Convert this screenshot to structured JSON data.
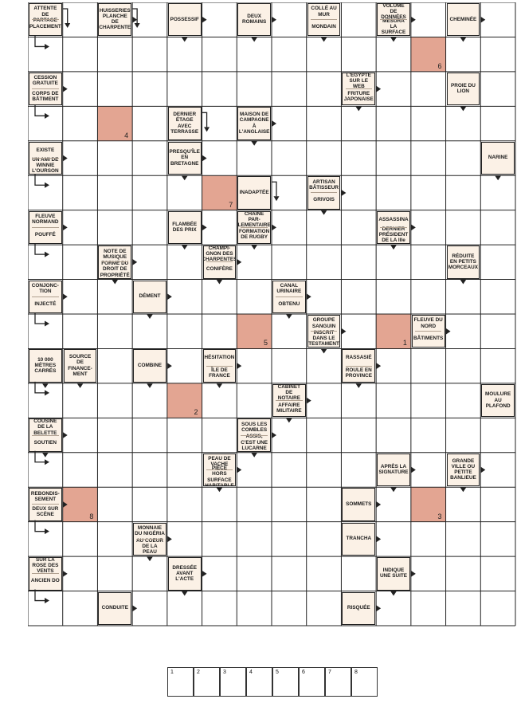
{
  "grid": {
    "cols": 14,
    "rows": 18
  },
  "colors": {
    "clue_bg": "#fbf1e6",
    "shade": "#e3a592",
    "line": "#222222"
  },
  "clues": [
    {
      "id": "c0-0",
      "r": 0,
      "c": 0,
      "parts": [
        "BIEN EN ATTENTE DE PARTAGE",
        "PLACEMENT"
      ]
    },
    {
      "id": "c0-2",
      "r": 0,
      "c": 2,
      "parts": [
        "HUISSERIES PLANCHE DE CHARPENTE"
      ]
    },
    {
      "id": "c0-4",
      "r": 0,
      "c": 4,
      "parts": [
        "POSSESSIF"
      ]
    },
    {
      "id": "c0-6",
      "r": 0,
      "c": 6,
      "parts": [
        "DEUX ROMAINS"
      ]
    },
    {
      "id": "c0-8",
      "r": 0,
      "c": 8,
      "parts": [
        "COLLÉ AU MUR",
        "MONDAIN"
      ]
    },
    {
      "id": "c0-10",
      "r": 0,
      "c": 10,
      "parts": [
        "VOLUME DE DONNÉES",
        "MESURA LA SURFACE"
      ]
    },
    {
      "id": "c0-12",
      "r": 0,
      "c": 12,
      "parts": [
        "CHEMINÉE"
      ]
    },
    {
      "id": "c2-0",
      "r": 2,
      "c": 0,
      "parts": [
        "CESSION GRATUITE",
        "CORPS DE BÂTIMENT"
      ]
    },
    {
      "id": "c2-9",
      "r": 2,
      "c": 9,
      "parts": [
        "L'ÉGYPTE SUR LE WEB",
        "FRITURE JAPONAISE"
      ]
    },
    {
      "id": "c2-12",
      "r": 2,
      "c": 12,
      "parts": [
        "PROIE DU LION"
      ]
    },
    {
      "id": "c3-4",
      "r": 3,
      "c": 4,
      "parts": [
        "DERNIER ÉTAGE AVEC TERRASSE"
      ]
    },
    {
      "id": "c3-6",
      "r": 3,
      "c": 6,
      "parts": [
        "MAISON DE CAMPAGNE À L'ANGLAISE"
      ]
    },
    {
      "id": "c4-0",
      "r": 4,
      "c": 0,
      "parts": [
        "EXISTE",
        "UN AMI DE WINNIE L'OURSON"
      ]
    },
    {
      "id": "c4-4",
      "r": 4,
      "c": 4,
      "parts": [
        "PRESQU'ÎLE EN BRETAGNE"
      ]
    },
    {
      "id": "c4-13",
      "r": 4,
      "c": 13,
      "parts": [
        "NARINE"
      ]
    },
    {
      "id": "c5-6",
      "r": 5,
      "c": 6,
      "parts": [
        "INADAPTÉE"
      ]
    },
    {
      "id": "c5-8",
      "r": 5,
      "c": 8,
      "parts": [
        "ARTISAN BÂTISSEUR",
        "GRIVOIS"
      ]
    },
    {
      "id": "c6-0",
      "r": 6,
      "c": 0,
      "parts": [
        "FLEUVE NORMAND",
        "POUFFÉ"
      ]
    },
    {
      "id": "c6-4",
      "r": 6,
      "c": 4,
      "parts": [
        "FLAMBÉE DES PRIX"
      ]
    },
    {
      "id": "c6-6",
      "r": 6,
      "c": 6,
      "parts": [
        "CHAÎNE PAR-LEMENTAIRE",
        "FORMATION DE RUGBY"
      ]
    },
    {
      "id": "c6-10",
      "r": 6,
      "c": 10,
      "parts": [
        "ASSASSINA",
        "DERNIER PRÉSIDENT DE LA IIIe"
      ]
    },
    {
      "id": "c7-2",
      "r": 7,
      "c": 2,
      "parts": [
        "NOTE DE MUSIQUE",
        "FORME DU DROIT DE PROPRIÉTÉ"
      ]
    },
    {
      "id": "c7-5",
      "r": 7,
      "c": 5,
      "parts": [
        "CHAMPI-GNON DES CHARPENTES",
        "CONIFÈRE"
      ]
    },
    {
      "id": "c7-12",
      "r": 7,
      "c": 12,
      "parts": [
        "RÉDUITE EN PETITS MORCEAUX"
      ]
    },
    {
      "id": "c8-0",
      "r": 8,
      "c": 0,
      "parts": [
        "CONJONC-TION",
        "INJECTÉ"
      ]
    },
    {
      "id": "c8-3",
      "r": 8,
      "c": 3,
      "parts": [
        "DÉMENT"
      ]
    },
    {
      "id": "c8-7",
      "r": 8,
      "c": 7,
      "parts": [
        "CANAL URINAIRE",
        "OBTENU"
      ]
    },
    {
      "id": "c9-8",
      "r": 9,
      "c": 8,
      "parts": [
        "GROUPE SANGUIN",
        "INSCRIT DANS LE TESTAMENT"
      ]
    },
    {
      "id": "c9-11",
      "r": 9,
      "c": 11,
      "parts": [
        "FLEUVE DU NORD",
        "BÂTIMENTS"
      ]
    },
    {
      "id": "c10-0",
      "r": 10,
      "c": 0,
      "parts": [
        "10 000 MÈTRES CARRÉS"
      ]
    },
    {
      "id": "c10-1",
      "r": 10,
      "c": 1,
      "parts": [
        "SOURCE DE FINANCE-MENT"
      ]
    },
    {
      "id": "c10-3",
      "r": 10,
      "c": 3,
      "parts": [
        "COMBINE"
      ]
    },
    {
      "id": "c10-5",
      "r": 10,
      "c": 5,
      "parts": [
        "HÉSITATION",
        "ÎLE DE FRANCE"
      ]
    },
    {
      "id": "c10-9",
      "r": 10,
      "c": 9,
      "parts": [
        "RASSASIÉ",
        "ROULE EN PROVINCE"
      ]
    },
    {
      "id": "c11-7",
      "r": 11,
      "c": 7,
      "parts": [
        "CABINET DE NOTAIRE",
        "AFFAIRE MILITAIRE"
      ]
    },
    {
      "id": "c11-13",
      "r": 11,
      "c": 13,
      "parts": [
        "MOULURE AU PLAFOND"
      ]
    },
    {
      "id": "c12-0",
      "r": 12,
      "c": 0,
      "parts": [
        "COUSINE DE LA BELETTE",
        "SOUTIEN"
      ]
    },
    {
      "id": "c12-6",
      "r": 12,
      "c": 6,
      "parts": [
        "SOUS LES COMBLES",
        "ASSIS, C'EST UNE LUCARNE"
      ]
    },
    {
      "id": "c13-5",
      "r": 13,
      "c": 5,
      "parts": [
        "PEAU DE VACHE",
        "PIÈCE HORS SURFACE HABITABLE"
      ]
    },
    {
      "id": "c13-10",
      "r": 13,
      "c": 10,
      "parts": [
        "APRÈS LA SIGNATURE"
      ]
    },
    {
      "id": "c13-12",
      "r": 13,
      "c": 12,
      "parts": [
        "GRANDE VILLE OU PETITE BANLIEUE"
      ]
    },
    {
      "id": "c14-0",
      "r": 14,
      "c": 0,
      "parts": [
        "REBONDIS-SEMENT",
        "DEUX SUR SCÈNE"
      ]
    },
    {
      "id": "c14-9",
      "r": 14,
      "c": 9,
      "parts": [
        "SOMMETS"
      ]
    },
    {
      "id": "c15-3",
      "r": 15,
      "c": 3,
      "parts": [
        "MONNAIE DU NIGÉRIA",
        "AU COEUR DE LA PEAU"
      ]
    },
    {
      "id": "c15-9",
      "r": 15,
      "c": 9,
      "parts": [
        "TRANCHA"
      ]
    },
    {
      "id": "c16-0",
      "r": 16,
      "c": 0,
      "parts": [
        "SUR LA ROSE DES VENTS",
        "ANCIEN DO"
      ]
    },
    {
      "id": "c16-4",
      "r": 16,
      "c": 4,
      "parts": [
        "DRESSÉE AVANT L'ACTE"
      ]
    },
    {
      "id": "c16-10",
      "r": 16,
      "c": 10,
      "parts": [
        "INDIQUE UNE SUITE"
      ]
    },
    {
      "id": "c17-2",
      "r": 17,
      "c": 2,
      "parts": [
        "CONDUITE"
      ]
    },
    {
      "id": "c17-9",
      "r": 17,
      "c": 9,
      "parts": [
        "RISQUÉE"
      ]
    }
  ],
  "shaded": [
    {
      "r": 1,
      "c": 11,
      "n": "6"
    },
    {
      "r": 3,
      "c": 2,
      "n": "4"
    },
    {
      "r": 5,
      "c": 5,
      "n": "7"
    },
    {
      "r": 9,
      "c": 6,
      "n": "5"
    },
    {
      "r": 9,
      "c": 10,
      "n": "1"
    },
    {
      "r": 11,
      "c": 4,
      "n": "2"
    },
    {
      "r": 14,
      "c": 1,
      "n": "8"
    },
    {
      "r": 14,
      "c": 11,
      "n": "3"
    }
  ],
  "answer_boxes": [
    "1",
    "2",
    "3",
    "4",
    "5",
    "6",
    "7",
    "8"
  ]
}
